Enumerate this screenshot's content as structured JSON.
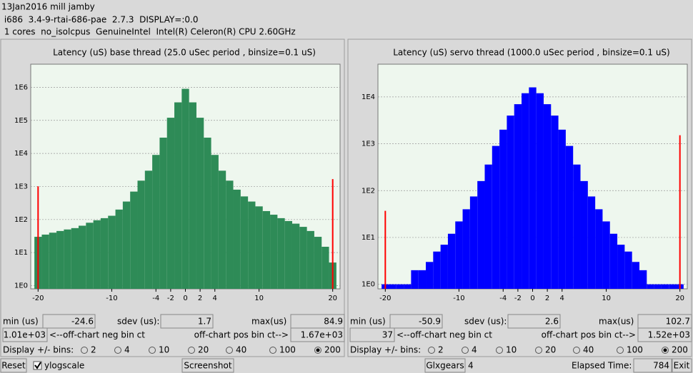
{
  "header": {
    "lines": [
      "13Jan2016 mill jamby",
      " i686  3.4-9-rtai-686-pae  2.7.3  DISPLAY=:0.0",
      " 1 cores  no_isolcpus  GenuineIntel  Intel(R) Celeron(R) CPU 2.60GHz"
    ]
  },
  "chart_data": [
    {
      "type": "histogram",
      "title": "Latency (uS) base thread (25.0 uSec period , binsize=0.1 uS)",
      "bins": [
        -20.5,
        -19.5,
        -18.5,
        -17.5,
        -16.5,
        -15.5,
        -14.5,
        -13.5,
        -12.5,
        -11.5,
        -10.5,
        -9.5,
        -8.5,
        -7.5,
        -6.5,
        -5.5,
        -4.5,
        -3.5,
        -2.5,
        -1.5,
        -0.5,
        0.5,
        1.5,
        2.5,
        3.5,
        4.5,
        5.5,
        6.5,
        7.5,
        8.5,
        9.5,
        10.5,
        11.5,
        12.5,
        13.5,
        14.5,
        15.5,
        16.5,
        17.5,
        18.5,
        19.5,
        20.5
      ],
      "values": [
        30,
        35,
        40,
        45,
        50,
        55,
        65,
        80,
        95,
        110,
        130,
        200,
        350,
        700,
        1500,
        3000,
        9000,
        30000,
        120000,
        350000,
        900000,
        350000,
        120000,
        30000,
        9000,
        3000,
        1500,
        800,
        500,
        350,
        250,
        180,
        140,
        110,
        90,
        75,
        60,
        45,
        30,
        15,
        5
      ],
      "color": "#2e8b57",
      "xlim": [
        -21,
        21
      ],
      "xticks": [
        -20,
        -10,
        -4,
        -2,
        0,
        2,
        4,
        10,
        20
      ],
      "ylim": [
        0.8,
        5000000
      ],
      "yticks": [
        {
          "value": 1,
          "label": "1E0"
        },
        {
          "value": 10,
          "label": "1E1"
        },
        {
          "value": 100,
          "label": "1E2"
        },
        {
          "value": 1000,
          "label": "1E3"
        },
        {
          "value": 10000,
          "label": "1E4"
        },
        {
          "value": 100000,
          "label": "1E5"
        },
        {
          "value": 1000000,
          "label": "1E6"
        }
      ],
      "log_scale": true,
      "grid": true,
      "offchart": {
        "values": [
          1010,
          1670
        ],
        "value_labels": [
          "1.01e+03",
          "1.67e+03"
        ],
        "color": "#ff0000"
      }
    },
    {
      "type": "histogram",
      "title": "Latency (uS) servo thread (1000.0 uSec period , binsize=0.1 uS)",
      "bins": [
        -20.5,
        -19.5,
        -18.5,
        -17.5,
        -16.5,
        -15.5,
        -14.5,
        -13.5,
        -12.5,
        -11.5,
        -10.5,
        -9.5,
        -8.5,
        -7.5,
        -6.5,
        -5.5,
        -4.5,
        -3.5,
        -2.5,
        -1.5,
        -0.5,
        0.5,
        1.5,
        2.5,
        3.5,
        4.5,
        5.5,
        6.5,
        7.5,
        8.5,
        9.5,
        10.5,
        11.5,
        12.5,
        13.5,
        14.5,
        15.5,
        16.5,
        17.5,
        18.5,
        19.5,
        20.5
      ],
      "values": [
        1,
        1,
        1,
        1,
        2,
        2,
        3,
        5,
        7,
        12,
        22,
        40,
        75,
        160,
        360,
        900,
        2000,
        4000,
        7000,
        12000,
        16000,
        12000,
        7000,
        4000,
        2000,
        900,
        360,
        160,
        75,
        40,
        22,
        12,
        7,
        5,
        3,
        2,
        1,
        1,
        1,
        1,
        1
      ],
      "color": "#0000ff",
      "xlim": [
        -21,
        21
      ],
      "xticks": [
        -20,
        -10,
        -4,
        -2,
        0,
        2,
        4,
        10,
        20
      ],
      "ylim": [
        0.8,
        50000
      ],
      "yticks": [
        {
          "value": 1,
          "label": "1E0"
        },
        {
          "value": 10,
          "label": "1E1"
        },
        {
          "value": 100,
          "label": "1E2"
        },
        {
          "value": 1000,
          "label": "1E3"
        },
        {
          "value": 10000,
          "label": "1E4"
        }
      ],
      "log_scale": true,
      "grid": true,
      "offchart": {
        "values": [
          37,
          1520
        ],
        "value_labels": [
          "37",
          "1.52e+03"
        ],
        "color": "#ff0000"
      }
    }
  ],
  "panels": [
    {
      "min_label": "min (us)",
      "min": -24.6,
      "sdev_label": "sdev (us):",
      "sdev": 1.7,
      "max_label": "max(us)",
      "max": 84.9,
      "neg_label": "<--off-chart neg bin ct",
      "pos_label": "off-chart pos bin ct-->",
      "bins_label": "Display +/- bins:",
      "bins_options": [
        2,
        4,
        10,
        20,
        40,
        100,
        200
      ],
      "bins_selected": 200
    },
    {
      "min_label": "min (us)",
      "min": -50.9,
      "sdev_label": "sdev (us):",
      "sdev": 2.6,
      "max_label": "max(us)",
      "max": 102.7,
      "neg_label": "<--off-chart neg bin ct",
      "pos_label": "off-chart pos bin ct-->",
      "bins_label": "Display +/- bins:",
      "bins_options": [
        2,
        4,
        10,
        20,
        40,
        100,
        200
      ],
      "bins_selected": 200
    }
  ],
  "footer": {
    "reset": "Reset",
    "ylogscale": "ylogscale",
    "ylogscale_checked": true,
    "screenshot": "Screenshot",
    "glxgears": "Glxgears",
    "glxgears_count": 4,
    "elapsed_label": "Elapsed Time:",
    "elapsed": 784,
    "exit": "Exit"
  }
}
